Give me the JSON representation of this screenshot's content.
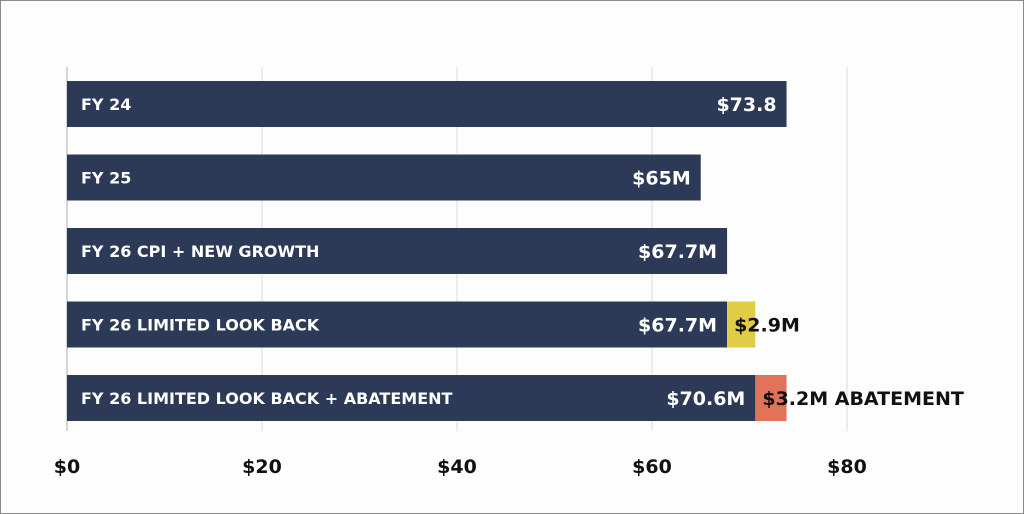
{
  "chart_data": {
    "type": "bar",
    "orientation": "horizontal",
    "stacked": true,
    "categories": [
      "FY 24",
      "FY 25",
      "FY 26 CPI + NEW GROWTH",
      "FY 26 LIMITED LOOK BACK",
      "FY 26 LIMITED LOOK BACK + ABATEMENT"
    ],
    "series": [
      {
        "name": "base",
        "color": "#2c3a58",
        "values": [
          73.8,
          65,
          67.7,
          67.7,
          70.6
        ],
        "labels": [
          "$73.8",
          "$65M",
          "$67.7M",
          "$67.7M",
          "$70.6M"
        ]
      },
      {
        "name": "look back",
        "color": "#e1cd45",
        "values": [
          0,
          0,
          0,
          2.9,
          0
        ],
        "labels": [
          "",
          "",
          "",
          "$2.9M",
          ""
        ]
      },
      {
        "name": "abatement",
        "color": "#e0735a",
        "values": [
          0,
          0,
          0,
          0,
          3.2
        ],
        "labels": [
          "",
          "",
          "",
          "",
          "$3.2M ABATEMENT"
        ]
      }
    ],
    "xlim": [
      0,
      80
    ],
    "xticks": [
      0,
      20,
      40,
      60,
      80
    ],
    "xtick_labels": [
      "$0",
      "$20",
      "$40",
      "$60",
      "$80"
    ],
    "grid": true,
    "title": "",
    "xlabel": "",
    "ylabel": ""
  }
}
